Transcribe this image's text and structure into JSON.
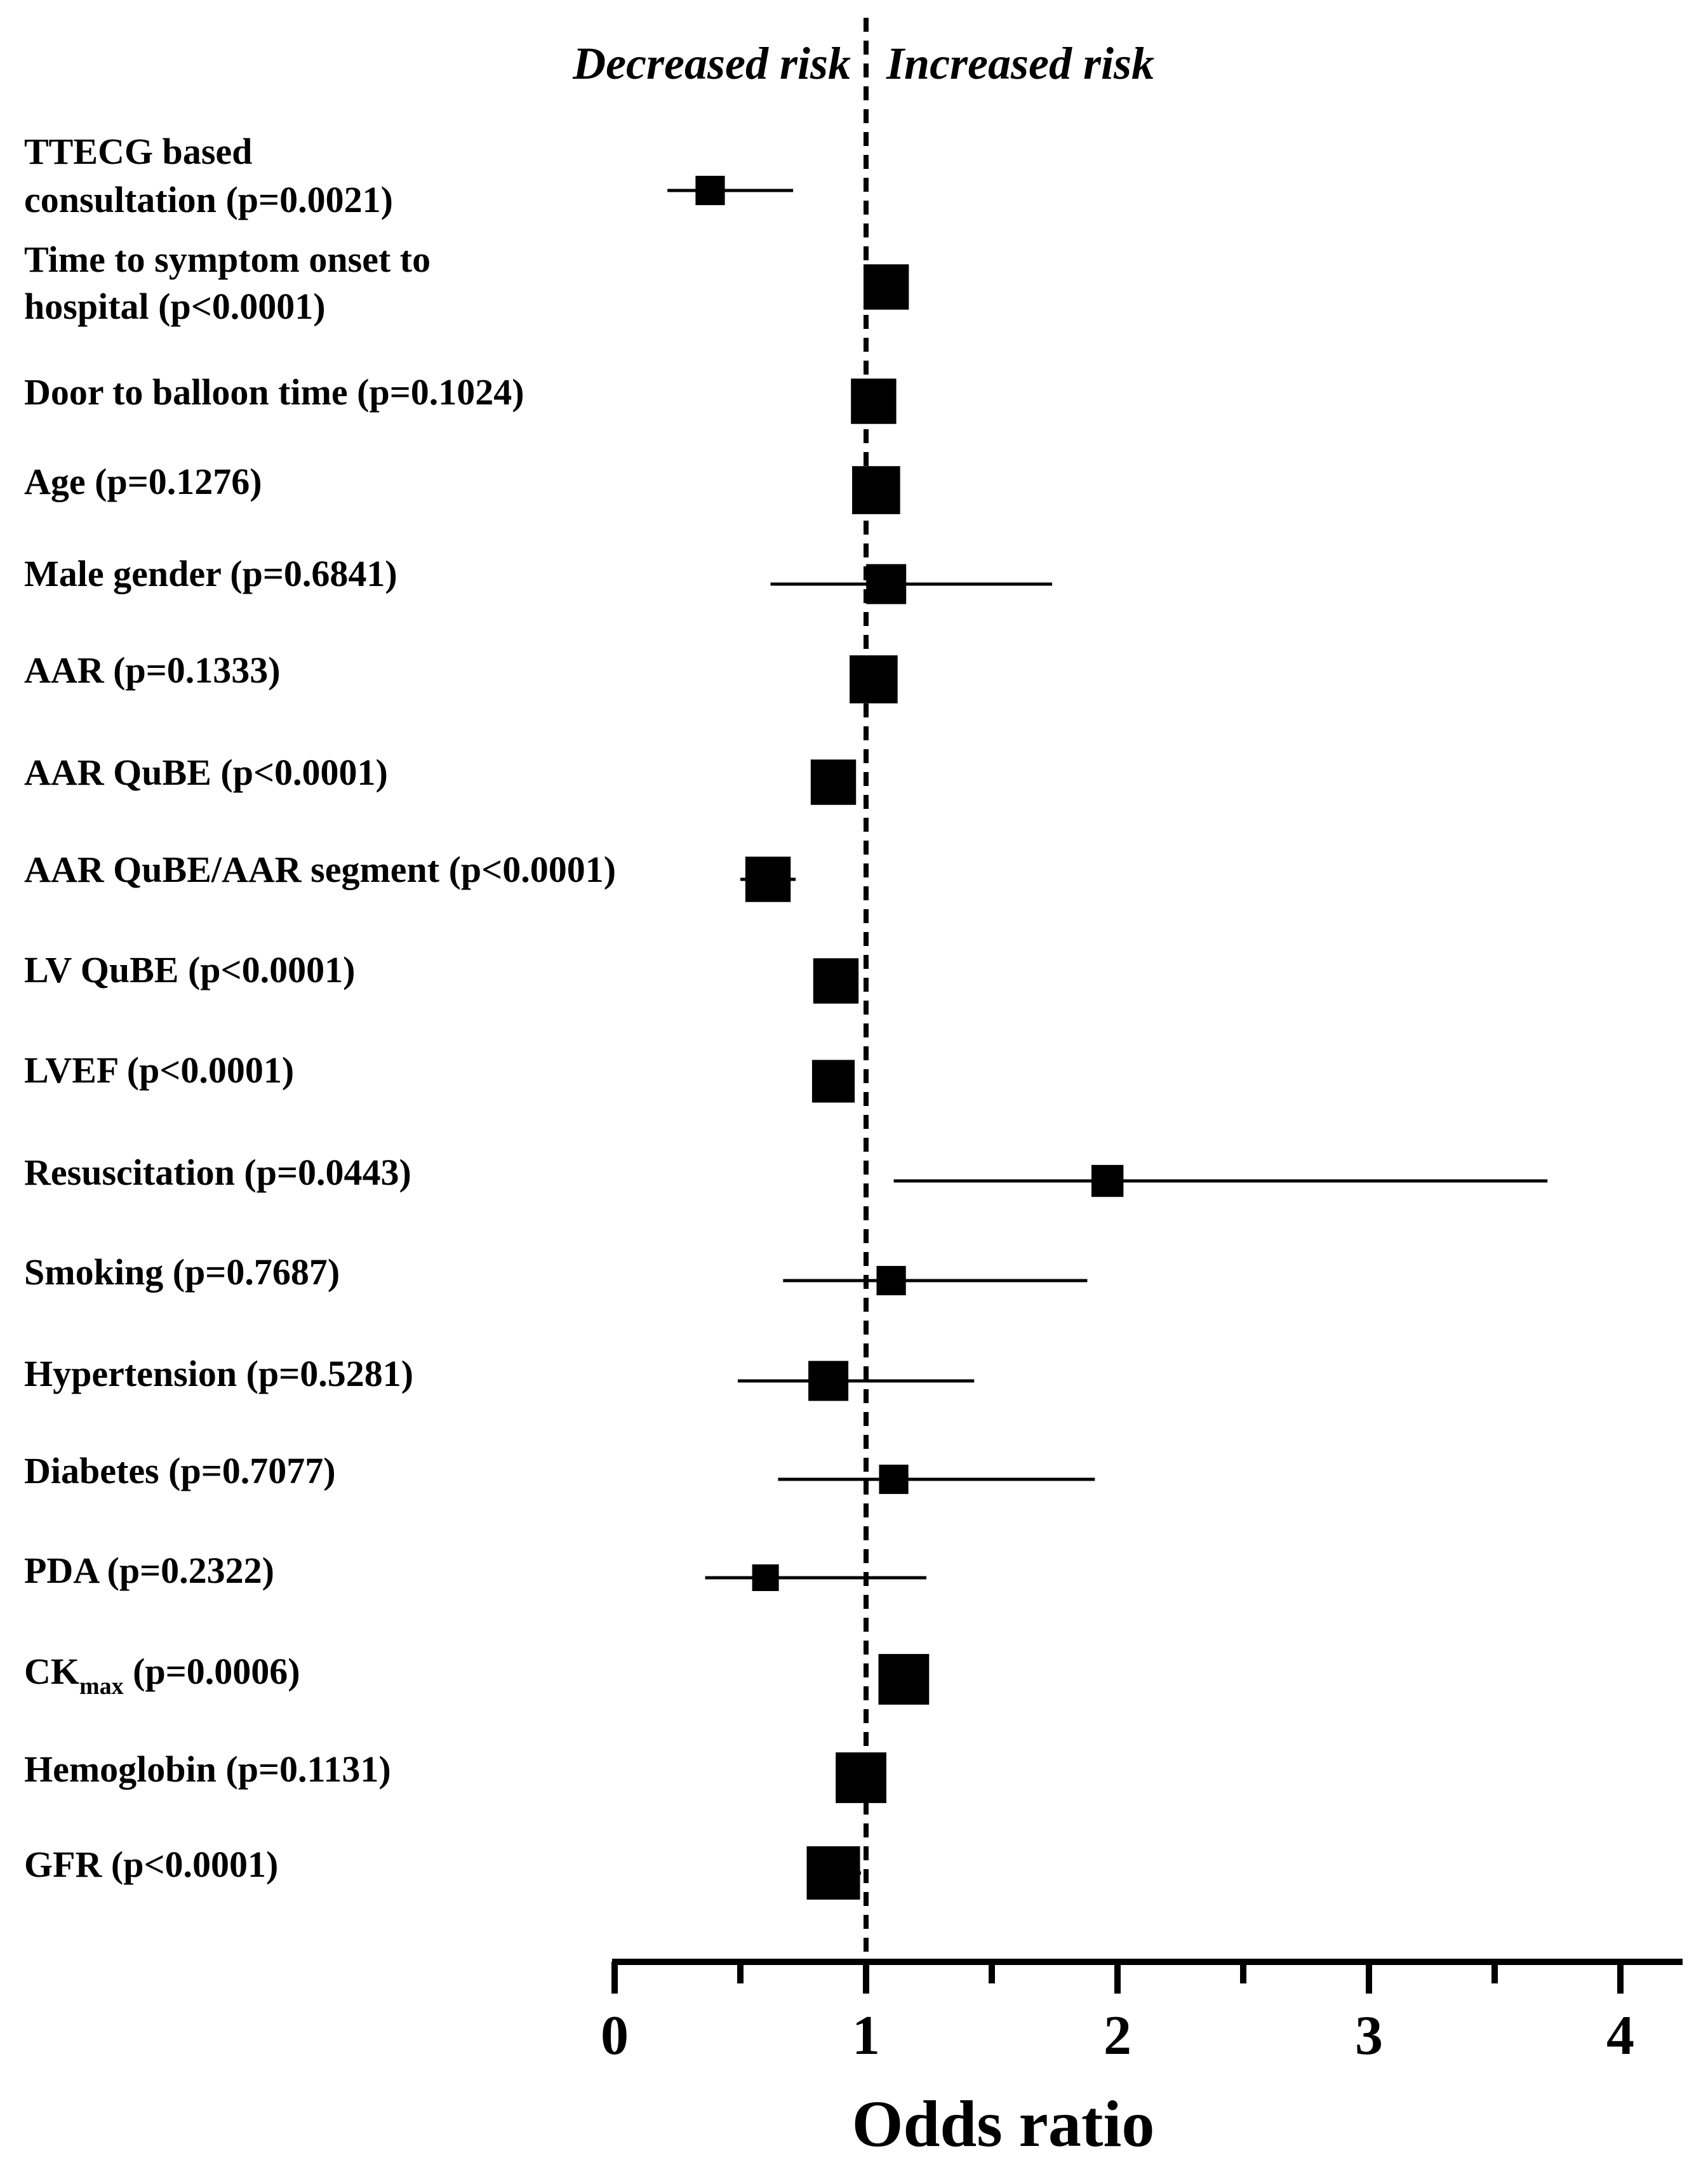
{
  "chart_data": {
    "type": "forest",
    "xlabel": "Odds ratio",
    "xlim": [
      0,
      4.25
    ],
    "xticks": [
      0,
      1,
      2,
      3,
      4
    ],
    "reference_line": 1,
    "left_annotation": "Decreased risk",
    "right_annotation": "Increased risk",
    "colors": {
      "marker": "#000000",
      "axis": "#000000"
    },
    "rows": [
      {
        "label_lines": [
          "TTECG based",
          "consultation  (p=0.0021)"
        ],
        "or": 0.38,
        "lo": 0.21,
        "hi": 0.71,
        "weight": 0.55
      },
      {
        "label_lines": [
          "Time to symptom onset to",
          "hospital  (p<0.0001)"
        ],
        "or": 1.08,
        "lo": 1.0,
        "hi": 1.16,
        "weight": 0.85
      },
      {
        "label_lines": [
          "Door to balloon time (p=0.1024)"
        ],
        "or": 1.03,
        "lo": 0.97,
        "hi": 1.09,
        "weight": 0.85
      },
      {
        "label_lines": [
          "Age (p=0.1276)"
        ],
        "or": 1.04,
        "lo": 0.98,
        "hi": 1.1,
        "weight": 0.9
      },
      {
        "label_lines": [
          "Male gender (p=0.6841)"
        ],
        "or": 1.08,
        "lo": 0.62,
        "hi": 1.74,
        "weight": 0.75
      },
      {
        "label_lines": [
          "AAR (p=0.1333)"
        ],
        "or": 1.03,
        "lo": 0.97,
        "hi": 1.09,
        "weight": 0.9
      },
      {
        "label_lines": [
          "AAR QuBE (p<0.0001)"
        ],
        "or": 0.87,
        "lo": 0.82,
        "hi": 0.93,
        "weight": 0.85
      },
      {
        "label_lines": [
          "AAR QuBE/AAR segment  (p<0.0001)"
        ],
        "or": 0.61,
        "lo": 0.5,
        "hi": 0.72,
        "weight": 0.85
      },
      {
        "label_lines": [
          "LV QuBE (p<0.0001)"
        ],
        "or": 0.88,
        "lo": 0.83,
        "hi": 0.93,
        "weight": 0.85
      },
      {
        "label_lines": [
          "LVEF (p<0.0001)"
        ],
        "or": 0.87,
        "lo": 0.83,
        "hi": 0.92,
        "weight": 0.8
      },
      {
        "label_lines": [
          "Resuscitation (p=0.0443)"
        ],
        "or": 1.96,
        "lo": 1.11,
        "hi": 3.71,
        "weight": 0.6
      },
      {
        "label_lines": [
          "Smoking (p=0.7687)"
        ],
        "or": 1.1,
        "lo": 0.67,
        "hi": 1.88,
        "weight": 0.55
      },
      {
        "label_lines": [
          "Hypertension (p=0.5281)"
        ],
        "or": 0.85,
        "lo": 0.49,
        "hi": 1.43,
        "weight": 0.75
      },
      {
        "label_lines": [
          "Diabetes (p=0.7077)"
        ],
        "or": 1.11,
        "lo": 0.65,
        "hi": 1.91,
        "weight": 0.55
      },
      {
        "label_lines": [
          "PDA (p=0.2322)"
        ],
        "or": 0.6,
        "lo": 0.36,
        "hi": 1.24,
        "weight": 0.5
      },
      {
        "label_lines": [
          "CK",
          " (p=0.0006)"
        ],
        "label_sub": "max",
        "or": 1.15,
        "lo": 1.07,
        "hi": 1.22,
        "weight": 0.95
      },
      {
        "label_lines": [
          "Hemoglobin (p=0.1131)"
        ],
        "or": 0.98,
        "lo": 0.89,
        "hi": 1.07,
        "weight": 0.95
      },
      {
        "label_lines": [
          "GFR (p<0.0001)"
        ],
        "or": 0.87,
        "lo": 0.78,
        "hi": 0.98,
        "weight": 1.0
      }
    ]
  }
}
